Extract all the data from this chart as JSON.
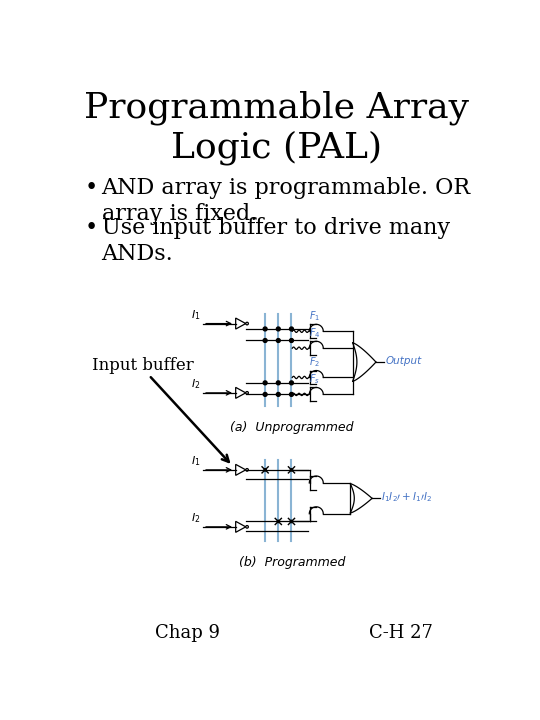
{
  "title": "Programmable Array\nLogic (PAL)",
  "bullet1": "AND array is programmable. OR\narray is fixed.",
  "bullet2": "Use input buffer to drive many\nANDs.",
  "label_input_buffer": "Input buffer",
  "label_a": "(a)  Unprogrammed",
  "label_b": "(b)  Programmed",
  "footer_left": "Chap 9",
  "footer_right": "C-H 27",
  "bg_color": "#ffffff",
  "title_fontsize": 26,
  "bullet_fontsize": 16,
  "diagram_color": "#000000",
  "blue_color": "#8ab4d4",
  "label_fontsize": 9,
  "footer_fontsize": 13
}
